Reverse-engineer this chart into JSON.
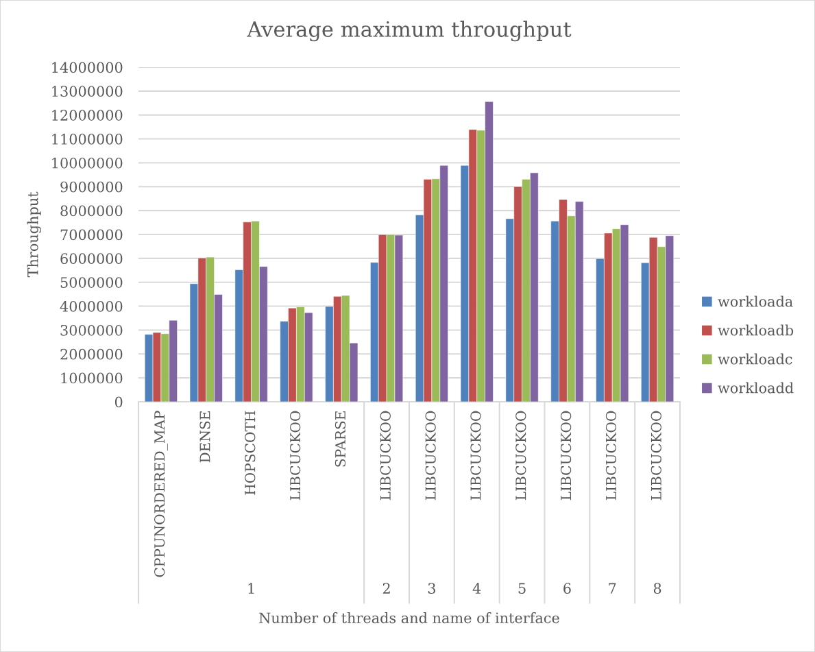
{
  "chart_data": {
    "type": "bar",
    "title": "Average maximum throughput",
    "xlabel": "Number of threads and name of interface",
    "ylabel": "Throughput",
    "categories": [
      "CPPUNORDERED_MAP",
      "DENSE",
      "HOPSCOTH",
      "LIBCUCKOO",
      "SPARSE",
      "LIBCUCKOO",
      "LIBCUCKOO",
      "LIBCUCKOO",
      "LIBCUCKOO",
      "LIBCUCKOO",
      "LIBCUCKOO",
      "LIBCUCKOO"
    ],
    "annotations": [
      "1",
      "2",
      "3",
      "4",
      "5",
      "6",
      "7",
      "8"
    ],
    "series": [
      {
        "name": "workloada",
        "color": "#4f81bd",
        "values": [
          2820000,
          4940000,
          5520000,
          3370000,
          3990000,
          5830000,
          7820000,
          9890000,
          7660000,
          7560000,
          5990000,
          5820000
        ]
      },
      {
        "name": "workloadb",
        "color": "#c0504d",
        "values": [
          2900000,
          6020000,
          7520000,
          3920000,
          4410000,
          6990000,
          9310000,
          11390000,
          9000000,
          8460000,
          7060000,
          6880000
        ]
      },
      {
        "name": "workloadc",
        "color": "#9bbb59",
        "values": [
          2850000,
          6050000,
          7560000,
          3970000,
          4450000,
          6990000,
          9330000,
          11360000,
          9310000,
          7780000,
          7240000,
          6490000
        ]
      },
      {
        "name": "workloadd",
        "color": "#8064a2",
        "values": [
          3410000,
          4490000,
          5660000,
          3730000,
          2460000,
          6970000,
          9890000,
          12560000,
          9580000,
          8380000,
          7410000,
          6950000
        ]
      }
    ],
    "ylim": [
      0,
      14000000
    ],
    "yticks": [
      0,
      1000000,
      2000000,
      3000000,
      4000000,
      5000000,
      6000000,
      7000000,
      8000000,
      9000000,
      10000000,
      11000000,
      12000000,
      13000000,
      14000000
    ],
    "grid": "y",
    "legend": "right"
  }
}
